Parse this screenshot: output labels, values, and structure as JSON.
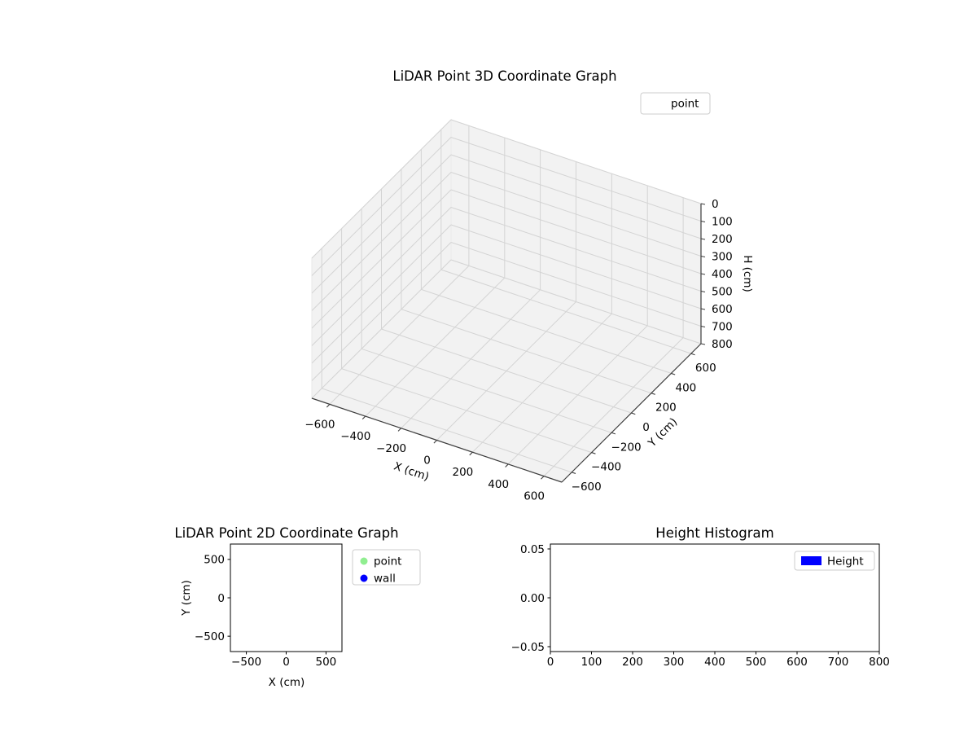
{
  "window": {
    "background": "#ffffff"
  },
  "chart_data": [
    {
      "id": "lidar-3d",
      "type": "scatter3d",
      "title": "LiDAR Point 3D Coordinate Graph",
      "xlabel": "X (cm)",
      "ylabel": "Y (cm)",
      "zlabel": "H (cm)",
      "xlim": [
        -700,
        700
      ],
      "ylim": [
        -700,
        700
      ],
      "zlim": [
        0,
        800
      ],
      "z_axis_inverted": true,
      "xticks": [
        -600,
        -400,
        -200,
        0,
        200,
        400,
        600
      ],
      "xtick_labels": [
        "−600",
        "−400",
        "−200",
        "0",
        "200",
        "400",
        "600"
      ],
      "yticks": [
        -600,
        -400,
        -200,
        0,
        200,
        400,
        600
      ],
      "ytick_labels": [
        "−600",
        "−400",
        "−200",
        "0",
        "200",
        "400",
        "600"
      ],
      "zticks": [
        0,
        100,
        200,
        300,
        400,
        500,
        600,
        700,
        800
      ],
      "ztick_labels": [
        "0",
        "100",
        "200",
        "300",
        "400",
        "500",
        "600",
        "700",
        "800"
      ],
      "grid": true,
      "pane_color": "#f2f2f2",
      "grid_color": "#d4d4d4",
      "legend": {
        "position": "upper right",
        "entries": [
          {
            "label": "point",
            "marker": "none"
          }
        ]
      },
      "series": [
        {
          "name": "point",
          "points": []
        }
      ]
    },
    {
      "id": "lidar-2d",
      "type": "scatter",
      "title": "LiDAR Point 2D Coordinate Graph",
      "xlabel": "X (cm)",
      "ylabel": "Y (cm)",
      "xlim": [
        -700,
        700
      ],
      "ylim": [
        -700,
        700
      ],
      "xticks": [
        -500,
        0,
        500
      ],
      "xtick_labels": [
        "−500",
        "0",
        "500"
      ],
      "yticks": [
        -500,
        0,
        500
      ],
      "ytick_labels": [
        "−500",
        "0",
        "500"
      ],
      "grid": false,
      "legend": {
        "position": "outside right",
        "entries": [
          {
            "label": "point",
            "color": "#90ee90"
          },
          {
            "label": "wall",
            "color": "#0000ff"
          }
        ]
      },
      "series": [
        {
          "name": "point",
          "points": []
        },
        {
          "name": "wall",
          "points": []
        }
      ]
    },
    {
      "id": "height-histogram",
      "type": "bar",
      "title": "Height Histogram",
      "xlabel": "",
      "ylabel": "",
      "xlim": [
        0,
        800
      ],
      "ylim": [
        -0.055,
        0.055
      ],
      "xticks": [
        0,
        100,
        200,
        300,
        400,
        500,
        600,
        700,
        800
      ],
      "xtick_labels": [
        "0",
        "100",
        "200",
        "300",
        "400",
        "500",
        "600",
        "700",
        "800"
      ],
      "yticks": [
        -0.05,
        0,
        0.05
      ],
      "ytick_labels": [
        "−0.05",
        "0.00",
        "0.05"
      ],
      "grid": false,
      "legend": {
        "position": "upper right",
        "entries": [
          {
            "label": "Height",
            "color": "#0000ff"
          }
        ]
      },
      "values": []
    }
  ]
}
